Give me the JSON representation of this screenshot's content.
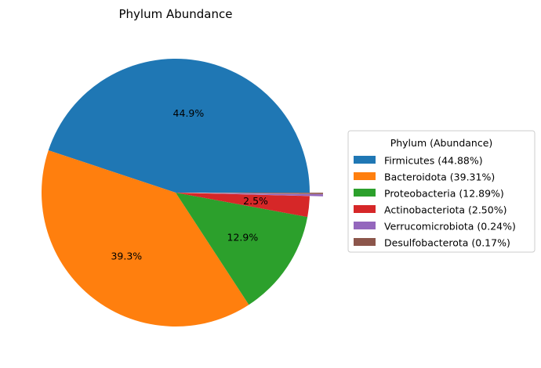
{
  "chart_data": {
    "type": "pie",
    "title": "Phylum Abundance",
    "legend": {
      "title": "Phylum (Abundance)",
      "placement": "center-right"
    },
    "slices": [
      {
        "name": "Firmicutes",
        "value": 44.88,
        "legend_label": "Firmicutes (44.88%)",
        "pct_label": "44.9%",
        "color": "#1f77b4"
      },
      {
        "name": "Bacteroidota",
        "value": 39.31,
        "legend_label": "Bacteroidota (39.31%)",
        "pct_label": "39.3%",
        "color": "#ff7f0e"
      },
      {
        "name": "Proteobacteria",
        "value": 12.89,
        "legend_label": "Proteobacteria (12.89%)",
        "pct_label": "12.9%",
        "color": "#2ca02c"
      },
      {
        "name": "Actinobacteriota",
        "value": 2.5,
        "legend_label": "Actinobacteriota (2.50%)",
        "pct_label": "2.5%",
        "color": "#d62728"
      },
      {
        "name": "Verrucomicrobiota",
        "value": 0.24,
        "legend_label": "Verrucomicrobiota (0.24%)",
        "pct_label": "",
        "color": "#9467bd"
      },
      {
        "name": "Desulfobacterota",
        "value": 0.17,
        "legend_label": "Desulfobacterota (0.17%)",
        "pct_label": "",
        "color": "#8c564b"
      }
    ],
    "exploded": [
      "Verrucomicrobiota",
      "Desulfobacterota"
    ]
  }
}
